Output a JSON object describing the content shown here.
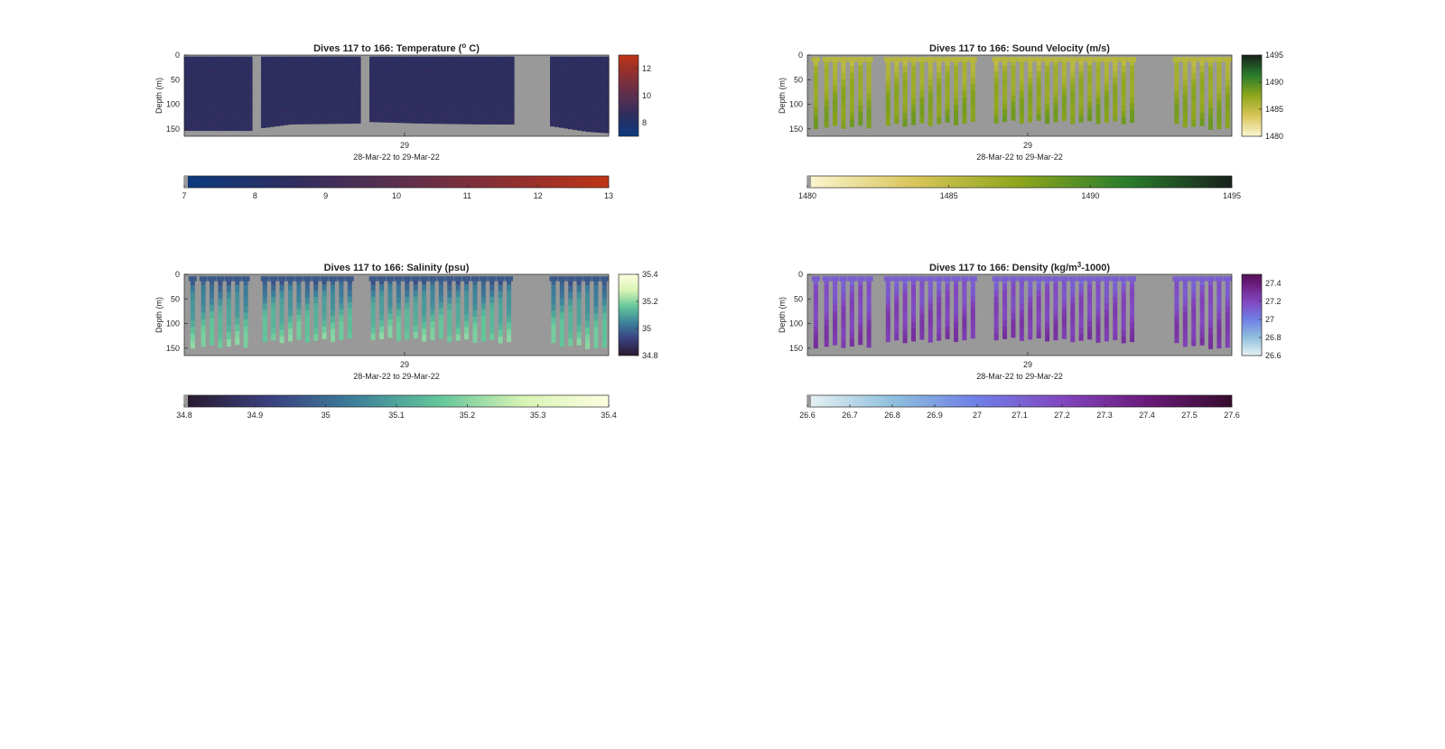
{
  "colors": {
    "missing": "#999999",
    "axis": "#262626",
    "background": "#ffffff"
  },
  "chart_data": [
    {
      "type": "heatmap",
      "variable": "temperature",
      "title_main": "Dives 117 to 166: Temperature (",
      "title_sup": "o",
      "title_end": " C)",
      "ylabel": "Depth (m)",
      "yticks": [
        "0",
        "50",
        "100",
        "150"
      ],
      "ylim": [
        0,
        165
      ],
      "xtick": "29",
      "xlabel": "28-Mar-22 to 29-Mar-22",
      "clim": [
        7,
        13
      ],
      "colormap": [
        "#0b3a7e",
        "#2d2e60",
        "#5b2f4e",
        "#8b2f33",
        "#bd3415"
      ],
      "cbar_ticks": [
        "8",
        "10",
        "12"
      ],
      "hbar_ticks": [
        "7",
        "8",
        "9",
        "10",
        "11",
        "12",
        "13"
      ],
      "filled": true,
      "value_surface": 8.5,
      "value_bottom": 8.6,
      "gaps": [
        [
          0.16,
          0.18
        ],
        [
          0.42,
          0.435
        ],
        [
          0.78,
          0.86
        ]
      ],
      "bottom_depth": [
        [
          0.0,
          153
        ],
        [
          0.16,
          153
        ],
        [
          0.18,
          148
        ],
        [
          0.25,
          140
        ],
        [
          0.42,
          138
        ],
        [
          0.435,
          135
        ],
        [
          0.55,
          138
        ],
        [
          0.7,
          140
        ],
        [
          0.78,
          140
        ],
        [
          0.86,
          143
        ],
        [
          0.95,
          155
        ],
        [
          1.0,
          158
        ]
      ]
    },
    {
      "type": "heatmap",
      "variable": "sound_velocity",
      "title_main": "Dives 117 to 166: Sound Velocity (m/s)",
      "ylabel": "Depth (m)",
      "yticks": [
        "0",
        "50",
        "100",
        "150"
      ],
      "ylim": [
        0,
        165
      ],
      "xtick": "29",
      "xlabel": "28-Mar-22 to 29-Mar-22",
      "clim": [
        1480,
        1495
      ],
      "colormap": [
        "#fbf6d1",
        "#d9c55a",
        "#8ea61c",
        "#2a7d2c",
        "#17211b"
      ],
      "cbar_ticks": [
        "1480",
        "1485",
        "1490",
        "1495"
      ],
      "hbar_ticks": [
        "1480",
        "1485",
        "1490",
        "1495"
      ],
      "filled": false,
      "value_surface": 1485.5,
      "value_bottom": 1488.5,
      "casts": [
        0.02,
        0.045,
        0.065,
        0.085,
        0.105,
        0.125,
        0.145,
        0.19,
        0.21,
        0.23,
        0.25,
        0.27,
        0.29,
        0.31,
        0.33,
        0.35,
        0.37,
        0.39,
        0.445,
        0.465,
        0.485,
        0.505,
        0.525,
        0.545,
        0.565,
        0.585,
        0.605,
        0.625,
        0.645,
        0.665,
        0.685,
        0.705,
        0.725,
        0.745,
        0.765,
        0.87,
        0.89,
        0.91,
        0.93,
        0.95,
        0.97,
        0.99
      ],
      "gaps": [
        [
          0.16,
          0.18
        ],
        [
          0.42,
          0.435
        ],
        [
          0.78,
          0.86
        ]
      ],
      "bottom_depth": [
        [
          0.0,
          150
        ],
        [
          0.16,
          148
        ],
        [
          0.18,
          146
        ],
        [
          0.42,
          140
        ],
        [
          0.435,
          138
        ],
        [
          0.78,
          140
        ],
        [
          0.86,
          144
        ],
        [
          1.0,
          155
        ]
      ]
    },
    {
      "type": "heatmap",
      "variable": "salinity",
      "title_main": "Dives 117 to 166: Salinity (psu)",
      "ylabel": "Depth (m)",
      "yticks": [
        "0",
        "50",
        "100",
        "150"
      ],
      "ylim": [
        0,
        165
      ],
      "xtick": "29",
      "xlabel": "28-Mar-22 to 29-Mar-22",
      "clim": [
        34.8,
        35.4
      ],
      "colormap": [
        "#281a2c",
        "#3a3f7f",
        "#3d7f9a",
        "#62c69a",
        "#d8f3b4",
        "#fdfee0"
      ],
      "cbar_ticks": [
        "34.8",
        "35",
        "35.2",
        "35.4"
      ],
      "hbar_ticks": [
        "34.8",
        "34.9",
        "35",
        "35.1",
        "35.2",
        "35.3",
        "35.4"
      ],
      "filled": false,
      "value_surface": 34.97,
      "value_bottom": 35.2,
      "casts": [
        0.02,
        0.045,
        0.065,
        0.085,
        0.105,
        0.125,
        0.145,
        0.19,
        0.21,
        0.23,
        0.25,
        0.27,
        0.29,
        0.31,
        0.33,
        0.35,
        0.37,
        0.39,
        0.445,
        0.465,
        0.485,
        0.505,
        0.525,
        0.545,
        0.565,
        0.585,
        0.605,
        0.625,
        0.645,
        0.665,
        0.685,
        0.705,
        0.725,
        0.745,
        0.765,
        0.87,
        0.89,
        0.91,
        0.93,
        0.95,
        0.97,
        0.99
      ],
      "gaps": [
        [
          0.16,
          0.18
        ],
        [
          0.42,
          0.435
        ],
        [
          0.78,
          0.86
        ]
      ],
      "bottom_depth": [
        [
          0.0,
          150
        ],
        [
          0.16,
          148
        ],
        [
          0.18,
          140
        ],
        [
          0.42,
          135
        ],
        [
          0.435,
          133
        ],
        [
          0.78,
          140
        ],
        [
          0.86,
          144
        ],
        [
          1.0,
          155
        ]
      ]
    },
    {
      "type": "heatmap",
      "variable": "density",
      "title_main": "Dives 117 to 166: Density (kg/m",
      "title_sup": "3",
      "title_end": "-1000)",
      "ylabel": "Depth (m)",
      "yticks": [
        "0",
        "50",
        "100",
        "150"
      ],
      "ylim": [
        0,
        165
      ],
      "xtick": "29",
      "xlabel": "28-Mar-22 to 29-Mar-22",
      "clim": [
        26.6,
        27.6
      ],
      "colormap": [
        "#e8f2f3",
        "#8fc0dd",
        "#6f7fe6",
        "#8246bf",
        "#6a1a7a",
        "#360b2c"
      ],
      "cbar_ticks": [
        "26.6",
        "26.8",
        "27",
        "27.2",
        "27.4"
      ],
      "cbar_tick_values": [
        26.6,
        26.8,
        27,
        27.2,
        27.4
      ],
      "cbar_clim": [
        26.6,
        27.5
      ],
      "hbar_ticks": [
        "26.6",
        "26.7",
        "26.8",
        "26.9",
        "27",
        "27.1",
        "27.2",
        "27.3",
        "27.4",
        "27.5",
        "27.6"
      ],
      "filled": false,
      "value_surface": 27.12,
      "value_bottom": 27.28,
      "casts": [
        0.02,
        0.045,
        0.065,
        0.085,
        0.105,
        0.125,
        0.145,
        0.19,
        0.21,
        0.23,
        0.25,
        0.27,
        0.29,
        0.31,
        0.33,
        0.35,
        0.37,
        0.39,
        0.445,
        0.465,
        0.485,
        0.505,
        0.525,
        0.545,
        0.565,
        0.585,
        0.605,
        0.625,
        0.645,
        0.665,
        0.685,
        0.705,
        0.725,
        0.745,
        0.765,
        0.87,
        0.89,
        0.91,
        0.93,
        0.95,
        0.97,
        0.99
      ],
      "gaps": [
        [
          0.16,
          0.18
        ],
        [
          0.42,
          0.435
        ],
        [
          0.78,
          0.86
        ]
      ],
      "bottom_depth": [
        [
          0.0,
          150
        ],
        [
          0.16,
          148
        ],
        [
          0.18,
          140
        ],
        [
          0.42,
          135
        ],
        [
          0.435,
          133
        ],
        [
          0.78,
          140
        ],
        [
          0.86,
          144
        ],
        [
          1.0,
          155
        ]
      ]
    }
  ]
}
